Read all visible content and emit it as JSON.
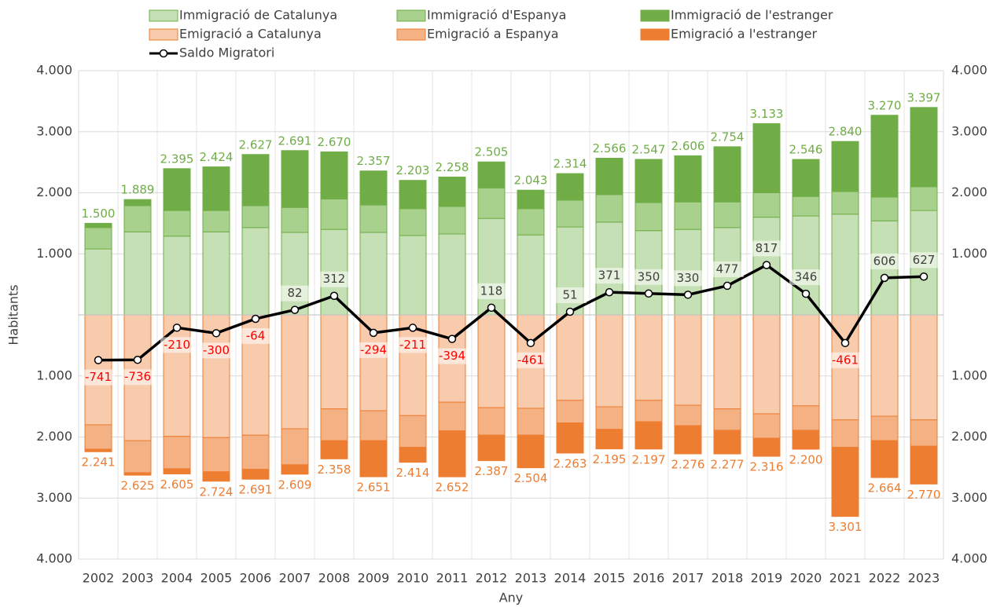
{
  "chart_data": {
    "type": "bar",
    "y_label": "Habitants",
    "x_label": "Any",
    "categories": [
      "2002",
      "2003",
      "2004",
      "2005",
      "2006",
      "2007",
      "2008",
      "2009",
      "2010",
      "2011",
      "2012",
      "2013",
      "2014",
      "2015",
      "2016",
      "2017",
      "2018",
      "2019",
      "2020",
      "2021",
      "2022",
      "2023"
    ],
    "series": [
      {
        "name": "Immigració de Catalunya",
        "color": "#c5e0b4",
        "border": "#70ad47",
        "values": [
          1080,
          1360,
          1290,
          1360,
          1430,
          1350,
          1400,
          1350,
          1300,
          1325,
          1580,
          1310,
          1440,
          1520,
          1380,
          1400,
          1430,
          1600,
          1620,
          1650,
          1540,
          1710
        ]
      },
      {
        "name": "Immigració d'Espanya",
        "color": "#a9d18e",
        "border": "#70ad47",
        "values": [
          350,
          430,
          420,
          350,
          360,
          410,
          500,
          450,
          440,
          450,
          500,
          430,
          440,
          450,
          460,
          450,
          420,
          400,
          320,
          370,
          390,
          390
        ]
      },
      {
        "name": "Immigració de l'estranger",
        "color": "#70ad47",
        "border": "#70ad47",
        "values": [
          70,
          99,
          685,
          714,
          837,
          931,
          770,
          557,
          463,
          483,
          425,
          303,
          434,
          596,
          707,
          756,
          904,
          1133,
          606,
          820,
          1340,
          1297
        ]
      },
      {
        "name": "Emigració a Catalunya",
        "color": "#f8cbad",
        "border": "#ed7d31",
        "values": [
          -1800,
          -2060,
          -1990,
          -2010,
          -1970,
          -1865,
          -1540,
          -1570,
          -1650,
          -1430,
          -1520,
          -1530,
          -1400,
          -1505,
          -1400,
          -1480,
          -1540,
          -1620,
          -1490,
          -1720,
          -1660,
          -1720
        ]
      },
      {
        "name": "Emigració a Espanya",
        "color": "#f4b183",
        "border": "#ed7d31",
        "values": [
          -400,
          -525,
          -530,
          -560,
          -560,
          -590,
          -520,
          -490,
          -520,
          -470,
          -450,
          -440,
          -370,
          -370,
          -350,
          -335,
          -350,
          -400,
          -400,
          -450,
          -400,
          -430
        ]
      },
      {
        "name": "Emigració a l'estranger",
        "color": "#ed7d31",
        "border": "#ed7d31",
        "values": [
          -41,
          -40,
          -85,
          -154,
          -161,
          -154,
          -298,
          -591,
          -244,
          -752,
          -417,
          -534,
          -493,
          -320,
          -447,
          -461,
          -387,
          -296,
          -310,
          -1131,
          -604,
          -620
        ]
      },
      {
        "name": "Saldo Migratori",
        "type": "line",
        "color": "#000000",
        "values": [
          -741,
          -736,
          -210,
          -300,
          -64,
          82,
          312,
          -294,
          -211,
          -394,
          118,
          -461,
          51,
          371,
          350,
          330,
          477,
          817,
          346,
          -461,
          606,
          627
        ]
      }
    ],
    "immigration_totals": {
      "color": "#70ad47",
      "values": [
        1500,
        1889,
        2395,
        2424,
        2627,
        2691,
        2670,
        2357,
        2203,
        2258,
        2505,
        2043,
        2314,
        2566,
        2547,
        2606,
        2754,
        3133,
        2546,
        2840,
        3270,
        3397
      ],
      "value_labels": [
        "1.500",
        "1.889",
        "2.395",
        "2.424",
        "2.627",
        "2.691",
        "2.670",
        "2.357",
        "2.203",
        "2.258",
        "2.505",
        "2.043",
        "2.314",
        "2.566",
        "2.547",
        "2.606",
        "2.754",
        "3.133",
        "2.546",
        "2.840",
        "3.270",
        "3.397"
      ]
    },
    "emigration_totals": {
      "color": "#ed7d31",
      "values": [
        -2241,
        -2625,
        -2605,
        -2724,
        -2691,
        -2609,
        -2358,
        -2651,
        -2414,
        -2652,
        -2387,
        -2504,
        -2263,
        -2195,
        -2197,
        -2276,
        -2277,
        -2316,
        -2200,
        -3301,
        -2664,
        -2770
      ],
      "value_labels": [
        "2.241",
        "2.625",
        "2.605",
        "2.724",
        "2.691",
        "2.609",
        "2.358",
        "2.651",
        "2.414",
        "2.652",
        "2.387",
        "2.504",
        "2.263",
        "2.195",
        "2.197",
        "2.276",
        "2.277",
        "2.316",
        "2.200",
        "3.301",
        "2.664",
        "2.770"
      ]
    },
    "ylim": [
      -4000,
      4000
    ],
    "yticks": [
      {
        "value": 4000,
        "label": "4.000"
      },
      {
        "value": 3000,
        "label": "3.000"
      },
      {
        "value": 2000,
        "label": "2.000"
      },
      {
        "value": 1000,
        "label": "1.000"
      },
      {
        "value": -1000,
        "label": "1.000"
      },
      {
        "value": -2000,
        "label": "2.000"
      },
      {
        "value": -3000,
        "label": "3.000"
      },
      {
        "value": -4000,
        "label": "4.000"
      }
    ],
    "y2lim": [
      -4000,
      4000
    ],
    "y2ticks": [
      {
        "value": 4000,
        "label": "4.000"
      },
      {
        "value": 3000,
        "label": "3.000"
      },
      {
        "value": 2000,
        "label": "2.000"
      },
      {
        "value": 1000,
        "label": "1.000"
      },
      {
        "value": -1000,
        "label": "1.000"
      },
      {
        "value": -2000,
        "label": "2.000"
      },
      {
        "value": -3000,
        "label": "3.000"
      },
      {
        "value": -4000,
        "label": "4.000"
      }
    ],
    "grid": true,
    "legend": "top"
  }
}
